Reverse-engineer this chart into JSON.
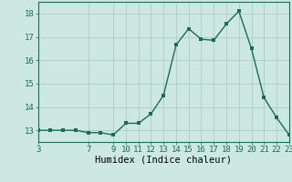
{
  "x": [
    3,
    4,
    5,
    6,
    7,
    8,
    9,
    10,
    11,
    12,
    13,
    14,
    15,
    16,
    17,
    18,
    19,
    20,
    21,
    22,
    23
  ],
  "y": [
    13.0,
    13.0,
    13.0,
    13.0,
    12.9,
    12.9,
    12.8,
    13.3,
    13.3,
    13.7,
    14.5,
    16.65,
    17.35,
    16.9,
    16.85,
    17.55,
    18.1,
    16.5,
    14.4,
    13.55,
    12.8
  ],
  "line_color": "#1a6b5a",
  "marker_color": "#1a6b5a",
  "bg_color": "#cce8e0",
  "grid_color": "#aacccc",
  "xlabel": "Humidex (Indice chaleur)",
  "xlim": [
    3,
    23
  ],
  "ylim": [
    12.5,
    18.5
  ],
  "yticks": [
    13,
    14,
    15,
    16,
    17,
    18
  ],
  "xticks": [
    3,
    7,
    9,
    10,
    11,
    12,
    13,
    14,
    15,
    16,
    17,
    18,
    19,
    20,
    21,
    22,
    23
  ],
  "xlabel_fontsize": 7.5,
  "tick_fontsize": 6.5,
  "line_width": 1.0,
  "marker_size": 2.5
}
